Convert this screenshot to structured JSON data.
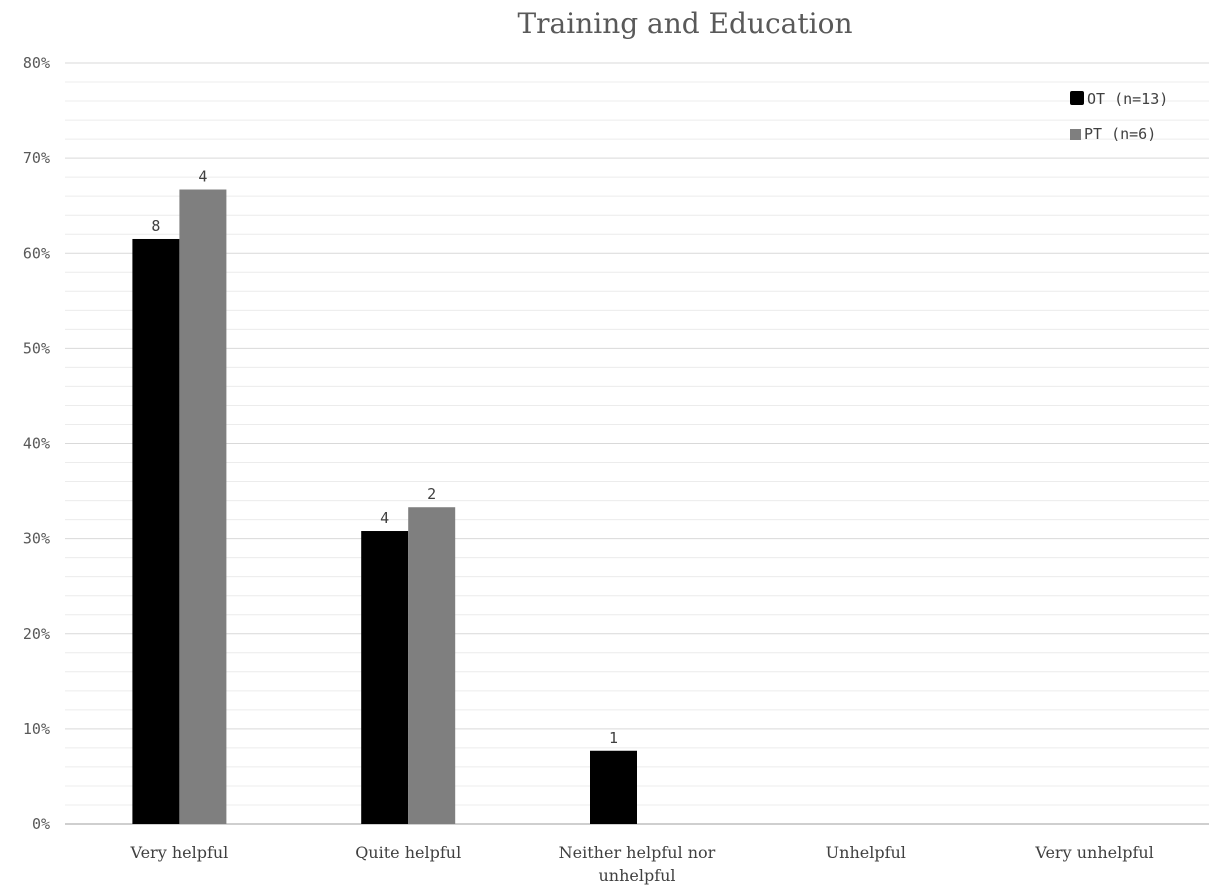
{
  "chart_data": {
    "type": "bar",
    "title": "Training and Education",
    "xlabel": "",
    "ylabel": "",
    "ylim": [
      0,
      80
    ],
    "y_ticks": [
      "0%",
      "10%",
      "20%",
      "30%",
      "40%",
      "50%",
      "60%",
      "70%",
      "80%"
    ],
    "y_tick_values": [
      0,
      10,
      20,
      30,
      40,
      50,
      60,
      70,
      80
    ],
    "grid": true,
    "legend_position": "top-right",
    "categories": [
      [
        "Very helpful"
      ],
      [
        "Quite helpful"
      ],
      [
        "Neither helpful nor",
        "unhelpful"
      ],
      [
        "Unhelpful"
      ],
      [
        "Very unhelpful"
      ]
    ],
    "series": [
      {
        "name": "OT (n=13)",
        "color": "#000000",
        "values": [
          61.5,
          30.8,
          7.7,
          0,
          0
        ],
        "labels": [
          "8",
          "4",
          "1",
          "",
          ""
        ]
      },
      {
        "name": "PT (n=6)",
        "color": "#7f7f7f",
        "values": [
          66.7,
          33.3,
          0,
          0,
          0
        ],
        "labels": [
          "4",
          "2",
          "",
          "",
          ""
        ]
      }
    ]
  }
}
